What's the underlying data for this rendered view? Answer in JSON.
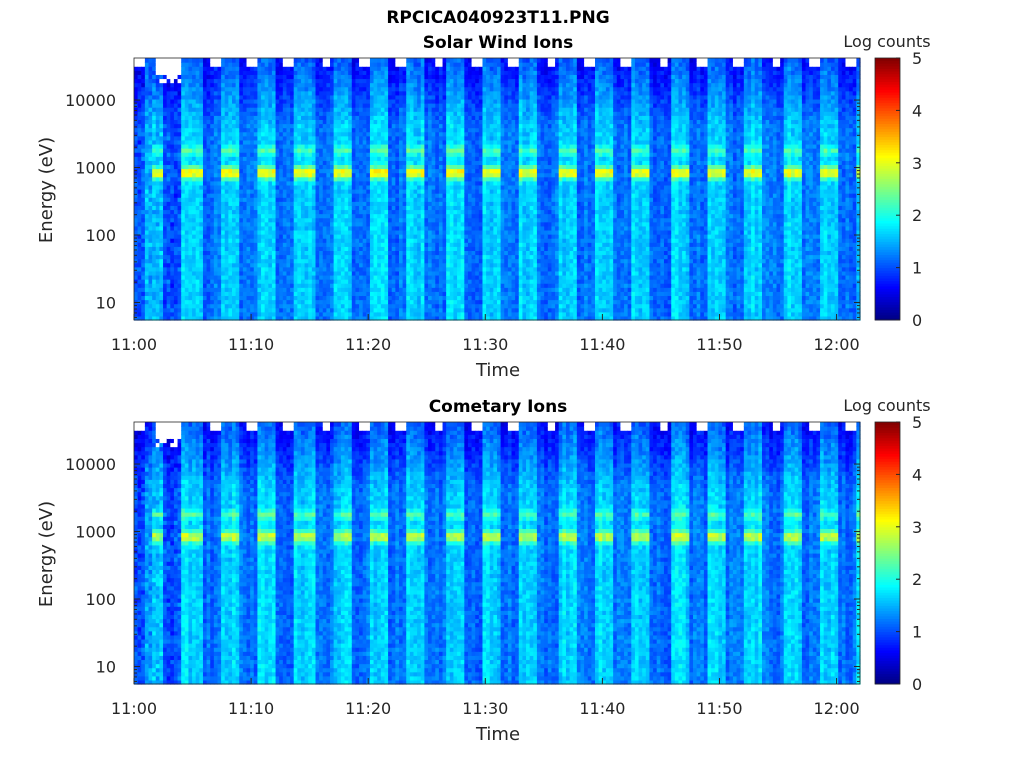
{
  "figure_title": "RPCICA040923T11.PNG",
  "chart_data": [
    {
      "type": "heatmap",
      "title": "Solar Wind Ions",
      "xlabel": "Time",
      "ylabel": "Energy (eV)",
      "x_ticks": [
        "11:00",
        "11:10",
        "11:20",
        "11:30",
        "11:40",
        "11:50",
        "12:00"
      ],
      "x_range_minutes": [
        0,
        62
      ],
      "y_ticks": [
        "10",
        "100",
        "1000",
        "10000"
      ],
      "y_tick_values": [
        10,
        100,
        1000,
        10000
      ],
      "y_scale": "log",
      "y_range": [
        5.5,
        42000
      ],
      "colorbar": {
        "label": "Log counts",
        "ticks": [
          "0",
          "1",
          "2",
          "3",
          "4",
          "5"
        ],
        "range": [
          0,
          5
        ],
        "colormap": "jet"
      },
      "peak_energy_eV": 850,
      "secondary_energy_eV": 1800,
      "sweep_period_minutes": 3.2,
      "peak_log_counts": 3.2
    },
    {
      "type": "heatmap",
      "title": "Cometary Ions",
      "xlabel": "Time",
      "ylabel": "Energy (eV)",
      "x_ticks": [
        "11:00",
        "11:10",
        "11:20",
        "11:30",
        "11:40",
        "11:50",
        "12:00"
      ],
      "x_range_minutes": [
        0,
        62
      ],
      "y_ticks": [
        "10",
        "100",
        "1000",
        "10000"
      ],
      "y_tick_values": [
        10,
        100,
        1000,
        10000
      ],
      "y_scale": "log",
      "y_range": [
        5.5,
        42000
      ],
      "colorbar": {
        "label": "Log counts",
        "ticks": [
          "0",
          "1",
          "2",
          "3",
          "4",
          "5"
        ],
        "range": [
          0,
          5
        ],
        "colormap": "jet"
      },
      "peak_energy_eV": 850,
      "secondary_energy_eV": 1800,
      "sweep_period_minutes": 3.2,
      "peak_log_counts": 2.9
    }
  ]
}
